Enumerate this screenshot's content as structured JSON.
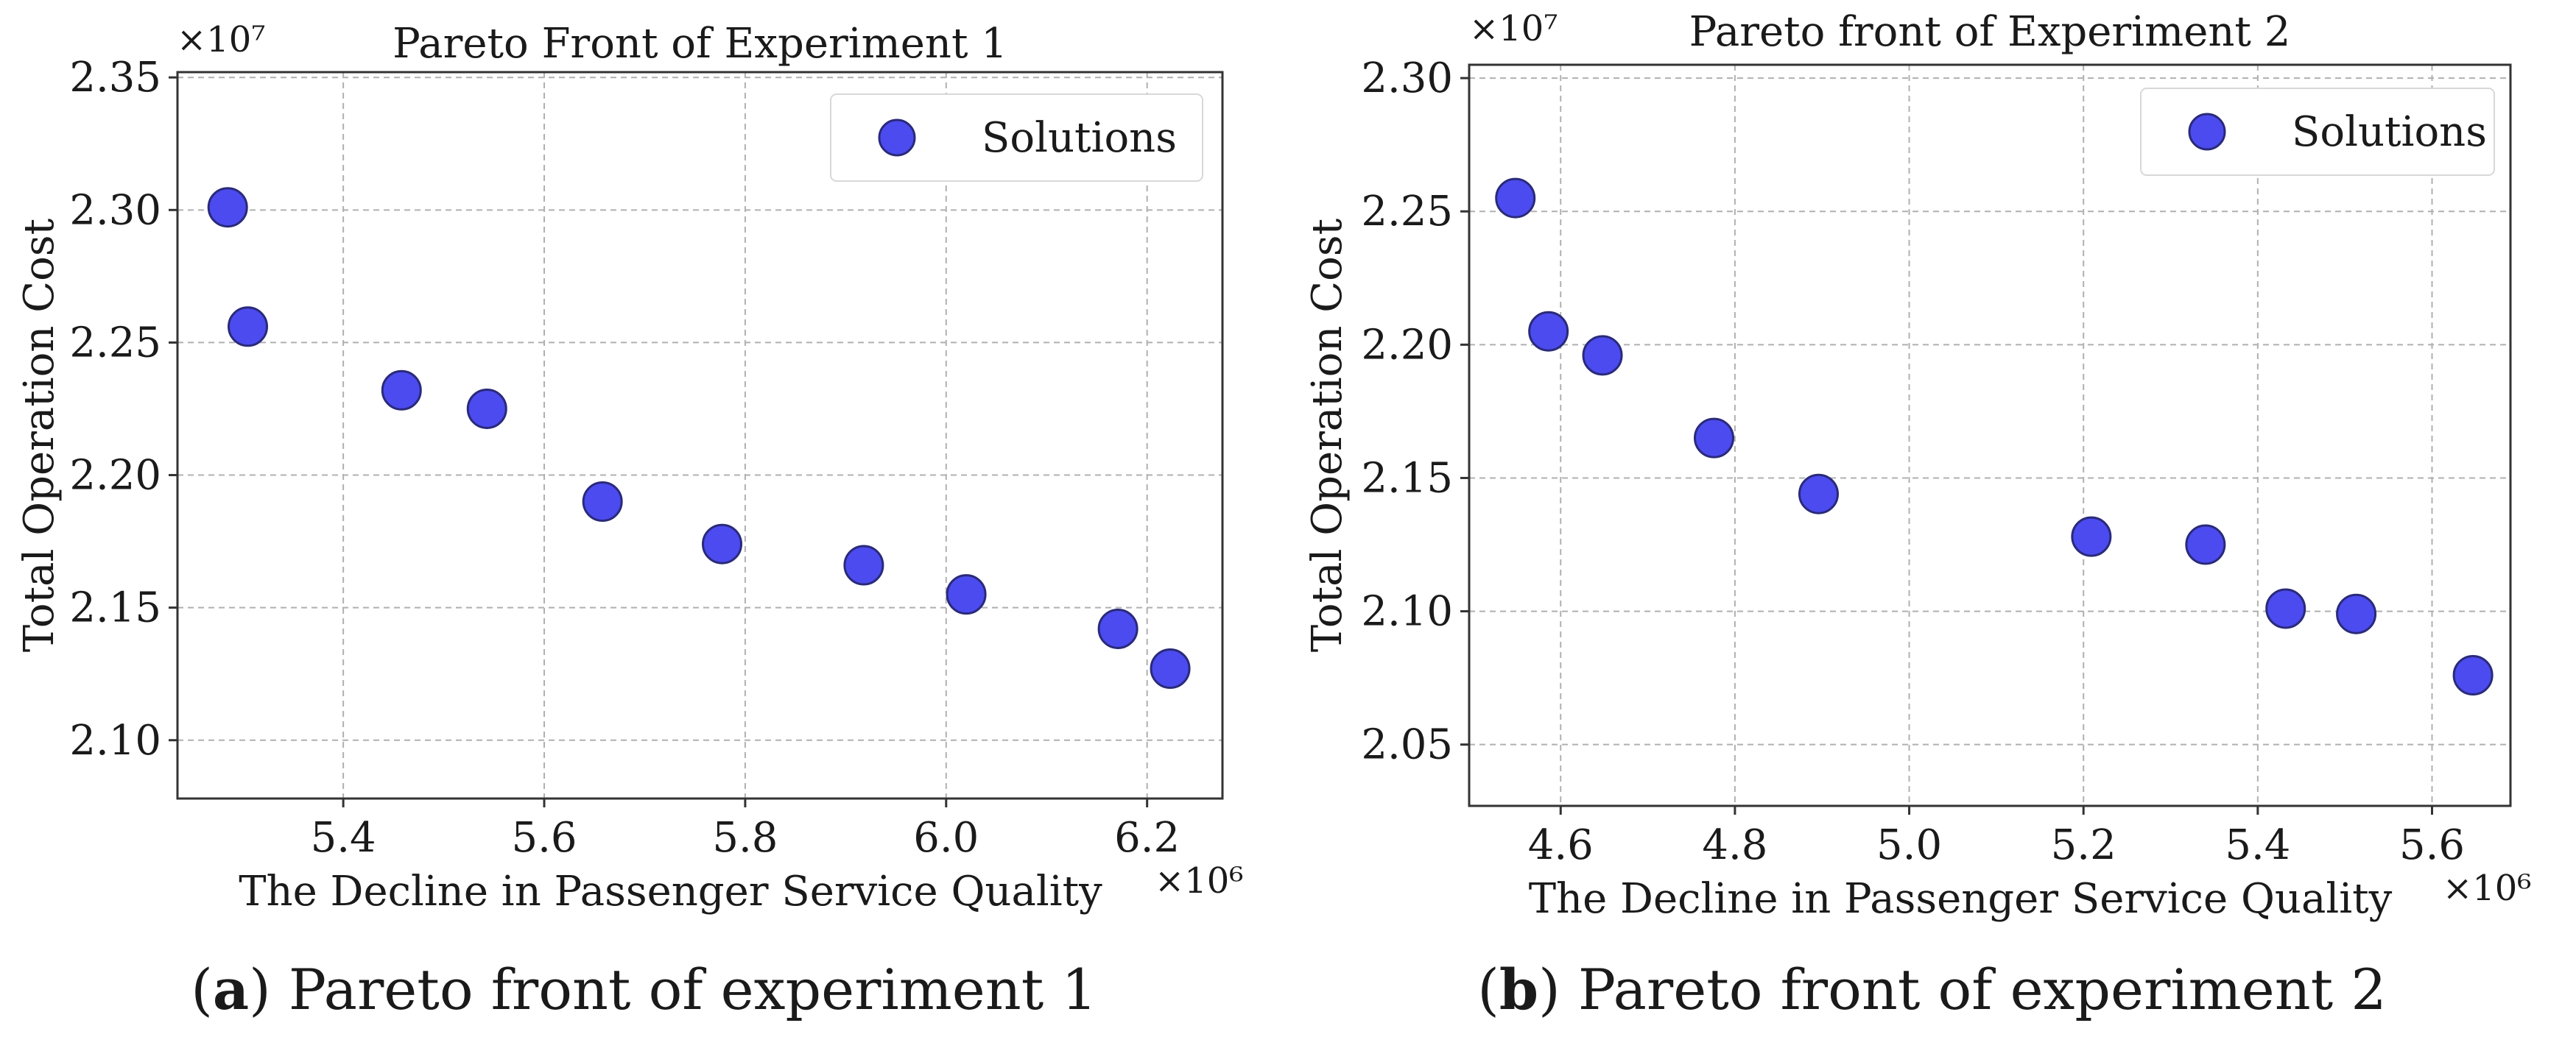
{
  "chart_data": [
    {
      "type": "scatter",
      "title": "Pareto Front of Experiment 1",
      "xlabel": "The Decline in Passenger Service Quality",
      "ylabel": "Total Operation Cost",
      "x_multiplier": "×10⁶",
      "y_multiplier": "×10⁷",
      "xlim": [
        5.235,
        6.275
      ],
      "ylim": [
        2.078,
        2.352
      ],
      "xticks": [
        "5.4",
        "5.6",
        "5.8",
        "6.0",
        "6.2"
      ],
      "yticks": [
        "2.10",
        "2.15",
        "2.20",
        "2.25",
        "2.30",
        "2.35"
      ],
      "grid": true,
      "legend": "top-right",
      "series": [
        {
          "name": "Solutions",
          "color": "#4b4bef",
          "x": [
            5.285,
            5.305,
            5.458,
            5.543,
            5.658,
            5.777,
            5.918,
            6.02,
            6.171,
            6.223
          ],
          "y": [
            2.301,
            2.256,
            2.232,
            2.225,
            2.19,
            2.174,
            2.166,
            2.155,
            2.142,
            2.127
          ]
        }
      ],
      "caption_prefix": "(",
      "caption_letter": "a",
      "caption_text": ") Pareto front of experiment 1"
    },
    {
      "type": "scatter",
      "title": "Pareto front of Experiment 2",
      "xlabel": "The Decline in Passenger Service Quality",
      "ylabel": "Total Operation Cost",
      "x_multiplier": "×10⁶",
      "y_multiplier": "×10⁷",
      "xlim": [
        4.495,
        5.69
      ],
      "ylim": [
        2.027,
        2.305
      ],
      "xticks": [
        "4.6",
        "4.8",
        "5.0",
        "5.2",
        "5.4",
        "5.6"
      ],
      "yticks": [
        "2.05",
        "2.10",
        "2.15",
        "2.20",
        "2.25",
        "2.30"
      ],
      "grid": true,
      "legend": "top-right",
      "series": [
        {
          "name": "Solutions",
          "color": "#4b4bef",
          "x": [
            4.548,
            4.586,
            4.648,
            4.776,
            4.896,
            5.209,
            5.34,
            5.432,
            5.513,
            5.647
          ],
          "y": [
            2.255,
            2.205,
            2.196,
            2.165,
            2.144,
            2.128,
            2.125,
            2.101,
            2.099,
            2.076
          ]
        }
      ],
      "caption_prefix": "(",
      "caption_letter": "b",
      "caption_text": ") Pareto front of experiment 2"
    }
  ]
}
